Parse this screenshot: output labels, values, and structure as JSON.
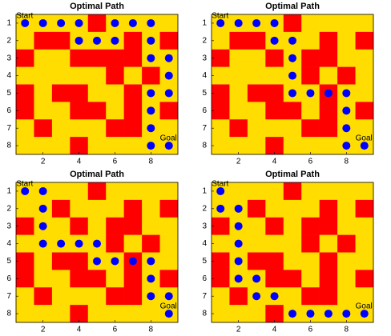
{
  "chart_data": [
    {
      "type": "gridpath",
      "title": "Optimal Path",
      "xlim": [
        0.5,
        9.5
      ],
      "ylim": [
        8.5,
        0.5
      ],
      "xticks": [
        2,
        4,
        6,
        8
      ],
      "yticks": [
        1,
        2,
        3,
        4,
        5,
        6,
        7,
        8
      ],
      "cell_colors": [
        "#ffdd00",
        "#ff0000"
      ],
      "path_color": "#0000ff",
      "start_label": "Start",
      "goal_label": "Goal",
      "grid": [
        [
          0,
          0,
          0,
          0,
          1,
          0,
          0,
          0,
          0
        ],
        [
          0,
          1,
          1,
          0,
          0,
          0,
          1,
          0,
          1
        ],
        [
          1,
          0,
          0,
          1,
          1,
          1,
          1,
          0,
          0
        ],
        [
          0,
          0,
          0,
          0,
          0,
          1,
          0,
          1,
          0
        ],
        [
          1,
          0,
          1,
          1,
          0,
          0,
          1,
          0,
          0
        ],
        [
          1,
          0,
          0,
          1,
          1,
          0,
          1,
          0,
          1
        ],
        [
          0,
          1,
          0,
          0,
          0,
          1,
          1,
          0,
          0
        ],
        [
          0,
          0,
          0,
          1,
          0,
          0,
          0,
          0,
          0
        ]
      ],
      "path": {
        "x": [
          1,
          2,
          3,
          4,
          4,
          5,
          6,
          6,
          7,
          8,
          8,
          8,
          9,
          9,
          9,
          8,
          8,
          8,
          8,
          9
        ],
        "y": [
          1,
          1,
          1,
          1,
          2,
          2,
          2,
          1,
          1,
          1,
          2,
          3,
          3,
          4,
          5,
          5,
          6,
          7,
          8,
          8
        ]
      }
    },
    {
      "type": "gridpath",
      "title": "Optimal Path",
      "xlim": [
        0.5,
        9.5
      ],
      "ylim": [
        8.5,
        0.5
      ],
      "xticks": [
        2,
        4,
        6,
        8
      ],
      "yticks": [
        1,
        2,
        3,
        4,
        5,
        6,
        7,
        8
      ],
      "cell_colors": [
        "#ffdd00",
        "#ff0000"
      ],
      "path_color": "#0000ff",
      "start_label": "Start",
      "goal_label": "Goal",
      "grid": [
        [
          0,
          0,
          0,
          0,
          1,
          0,
          0,
          0,
          0
        ],
        [
          0,
          1,
          1,
          0,
          0,
          0,
          1,
          0,
          1
        ],
        [
          1,
          0,
          0,
          1,
          0,
          1,
          1,
          0,
          0
        ],
        [
          0,
          0,
          0,
          0,
          0,
          1,
          0,
          1,
          0
        ],
        [
          1,
          0,
          1,
          1,
          0,
          0,
          1,
          0,
          0
        ],
        [
          1,
          0,
          0,
          1,
          1,
          0,
          1,
          0,
          1
        ],
        [
          0,
          1,
          0,
          0,
          0,
          1,
          1,
          0,
          0
        ],
        [
          0,
          0,
          0,
          1,
          0,
          0,
          0,
          0,
          0
        ]
      ],
      "path": {
        "x": [
          1,
          2,
          3,
          4,
          4,
          5,
          5,
          5,
          5,
          6,
          7,
          8,
          8,
          8,
          8,
          9
        ],
        "y": [
          1,
          1,
          1,
          1,
          2,
          2,
          3,
          4,
          5,
          5,
          5,
          5,
          6,
          7,
          8,
          8
        ]
      }
    },
    {
      "type": "gridpath",
      "title": "Optimal Path",
      "xlim": [
        0.5,
        9.5
      ],
      "ylim": [
        8.5,
        0.5
      ],
      "xticks": [
        2,
        4,
        6,
        8
      ],
      "yticks": [
        1,
        2,
        3,
        4,
        5,
        6,
        7,
        8
      ],
      "cell_colors": [
        "#ffdd00",
        "#ff0000"
      ],
      "path_color": "#0000ff",
      "start_label": "Start",
      "goal_label": "Goal",
      "grid": [
        [
          0,
          0,
          0,
          0,
          1,
          0,
          0,
          0,
          0
        ],
        [
          0,
          0,
          1,
          0,
          0,
          0,
          1,
          0,
          1
        ],
        [
          1,
          0,
          0,
          1,
          0,
          1,
          1,
          0,
          0
        ],
        [
          0,
          0,
          0,
          0,
          0,
          1,
          0,
          1,
          0
        ],
        [
          1,
          0,
          1,
          1,
          0,
          0,
          1,
          0,
          0
        ],
        [
          1,
          0,
          0,
          1,
          1,
          0,
          1,
          0,
          1
        ],
        [
          0,
          1,
          0,
          0,
          0,
          1,
          1,
          0,
          0
        ],
        [
          0,
          0,
          0,
          1,
          0,
          0,
          0,
          0,
          0
        ]
      ],
      "path": {
        "x": [
          1,
          2,
          2,
          2,
          2,
          3,
          4,
          5,
          5,
          6,
          7,
          8,
          8,
          8,
          9,
          9
        ],
        "y": [
          1,
          1,
          2,
          3,
          4,
          4,
          4,
          4,
          5,
          5,
          5,
          5,
          6,
          7,
          7,
          8
        ]
      }
    },
    {
      "type": "gridpath",
      "title": "Optimal Path",
      "xlim": [
        0.5,
        9.5
      ],
      "ylim": [
        8.5,
        0.5
      ],
      "xticks": [
        2,
        4,
        6,
        8
      ],
      "yticks": [
        1,
        2,
        3,
        4,
        5,
        6,
        7,
        8
      ],
      "cell_colors": [
        "#ffdd00",
        "#ff0000"
      ],
      "path_color": "#0000ff",
      "start_label": "Start",
      "goal_label": "Goal",
      "grid": [
        [
          0,
          0,
          0,
          0,
          1,
          0,
          0,
          0,
          0
        ],
        [
          0,
          0,
          1,
          0,
          0,
          0,
          1,
          0,
          1
        ],
        [
          1,
          0,
          0,
          1,
          0,
          1,
          1,
          0,
          0
        ],
        [
          0,
          0,
          0,
          0,
          0,
          1,
          0,
          1,
          0
        ],
        [
          1,
          0,
          1,
          1,
          0,
          0,
          1,
          0,
          0
        ],
        [
          1,
          0,
          0,
          1,
          1,
          0,
          1,
          0,
          1
        ],
        [
          0,
          1,
          0,
          0,
          0,
          1,
          1,
          0,
          0
        ],
        [
          0,
          0,
          0,
          1,
          0,
          0,
          0,
          0,
          0
        ]
      ],
      "path": {
        "x": [
          1,
          1,
          2,
          2,
          2,
          2,
          2,
          3,
          3,
          4,
          5,
          6,
          7,
          8,
          9
        ],
        "y": [
          1,
          2,
          2,
          3,
          4,
          5,
          6,
          6,
          7,
          7,
          8,
          8,
          8,
          8,
          8
        ]
      }
    }
  ]
}
